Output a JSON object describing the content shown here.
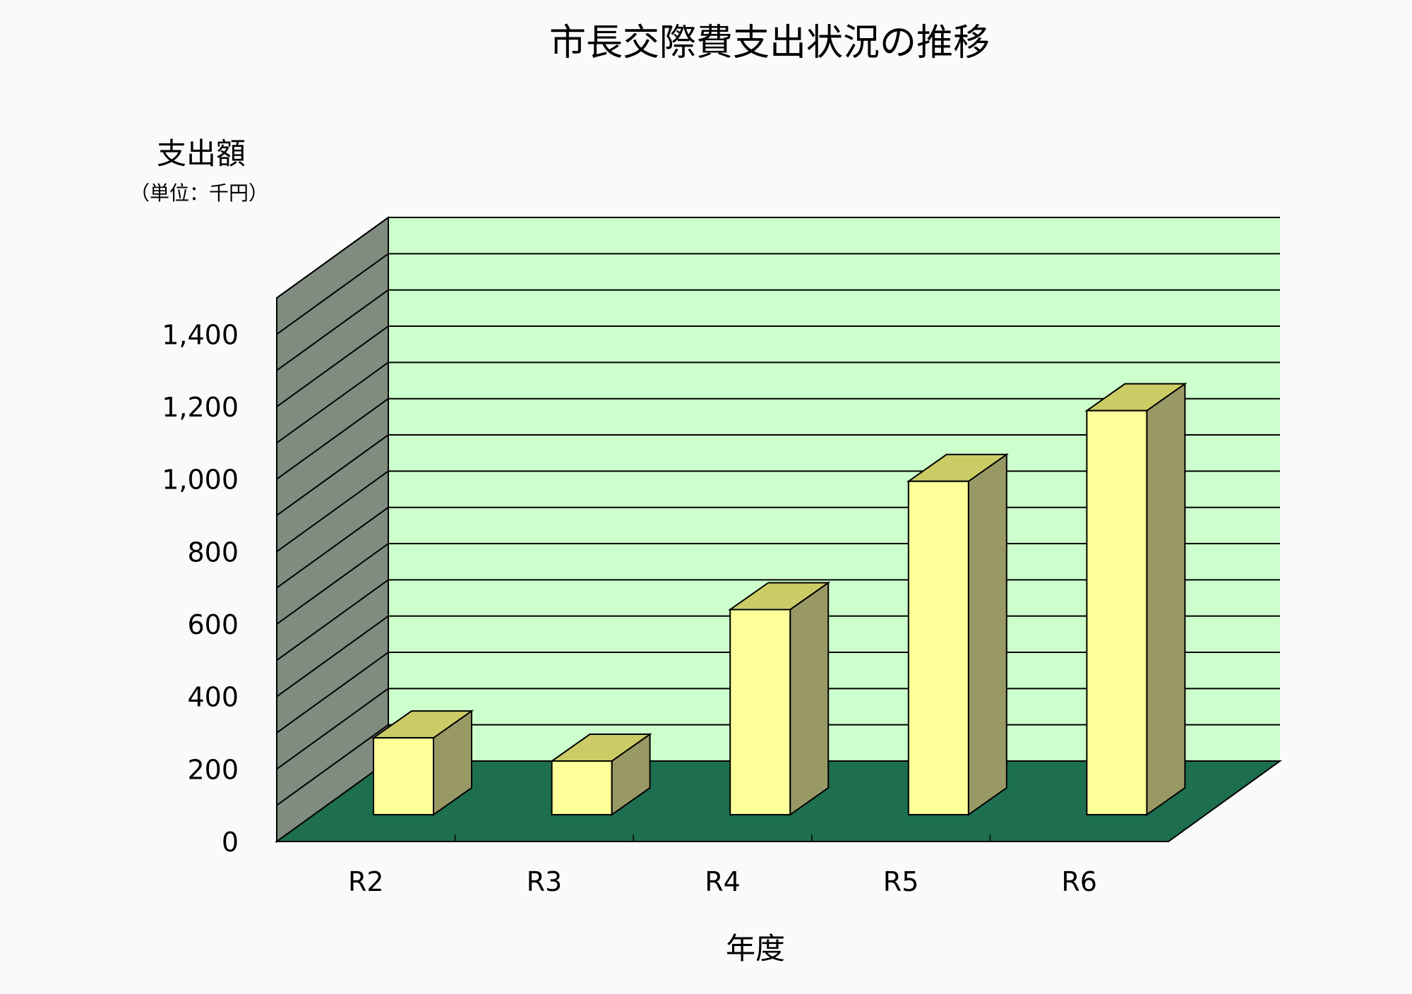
{
  "chart_data": {
    "type": "bar",
    "title": "市長交際費支出状況の推移",
    "ylabel": "支出額",
    "yunit": "（単位：千円）",
    "xlabel": "年度",
    "categories": [
      "R2",
      "R3",
      "R4",
      "R5",
      "R6"
    ],
    "values": [
      212,
      148,
      566,
      920,
      1115
    ],
    "ylim": [
      0,
      1500
    ],
    "ytick_values": [
      0,
      200,
      400,
      600,
      800,
      1000,
      1200,
      1400
    ],
    "ytick_labels": [
      "0",
      "200",
      "400",
      "600",
      "800",
      "1,000",
      "1,200",
      "1,400"
    ],
    "grid": true,
    "legend": "none",
    "colors": {
      "background": "#fafafa",
      "back_wall": "#ccffcc",
      "side_wall": "#7f8c7f",
      "floor": "#1e6e50",
      "bar_front": "#ffff99",
      "bar_top": "#cccc66",
      "bar_side": "#999966",
      "gridline": "#000000"
    }
  }
}
